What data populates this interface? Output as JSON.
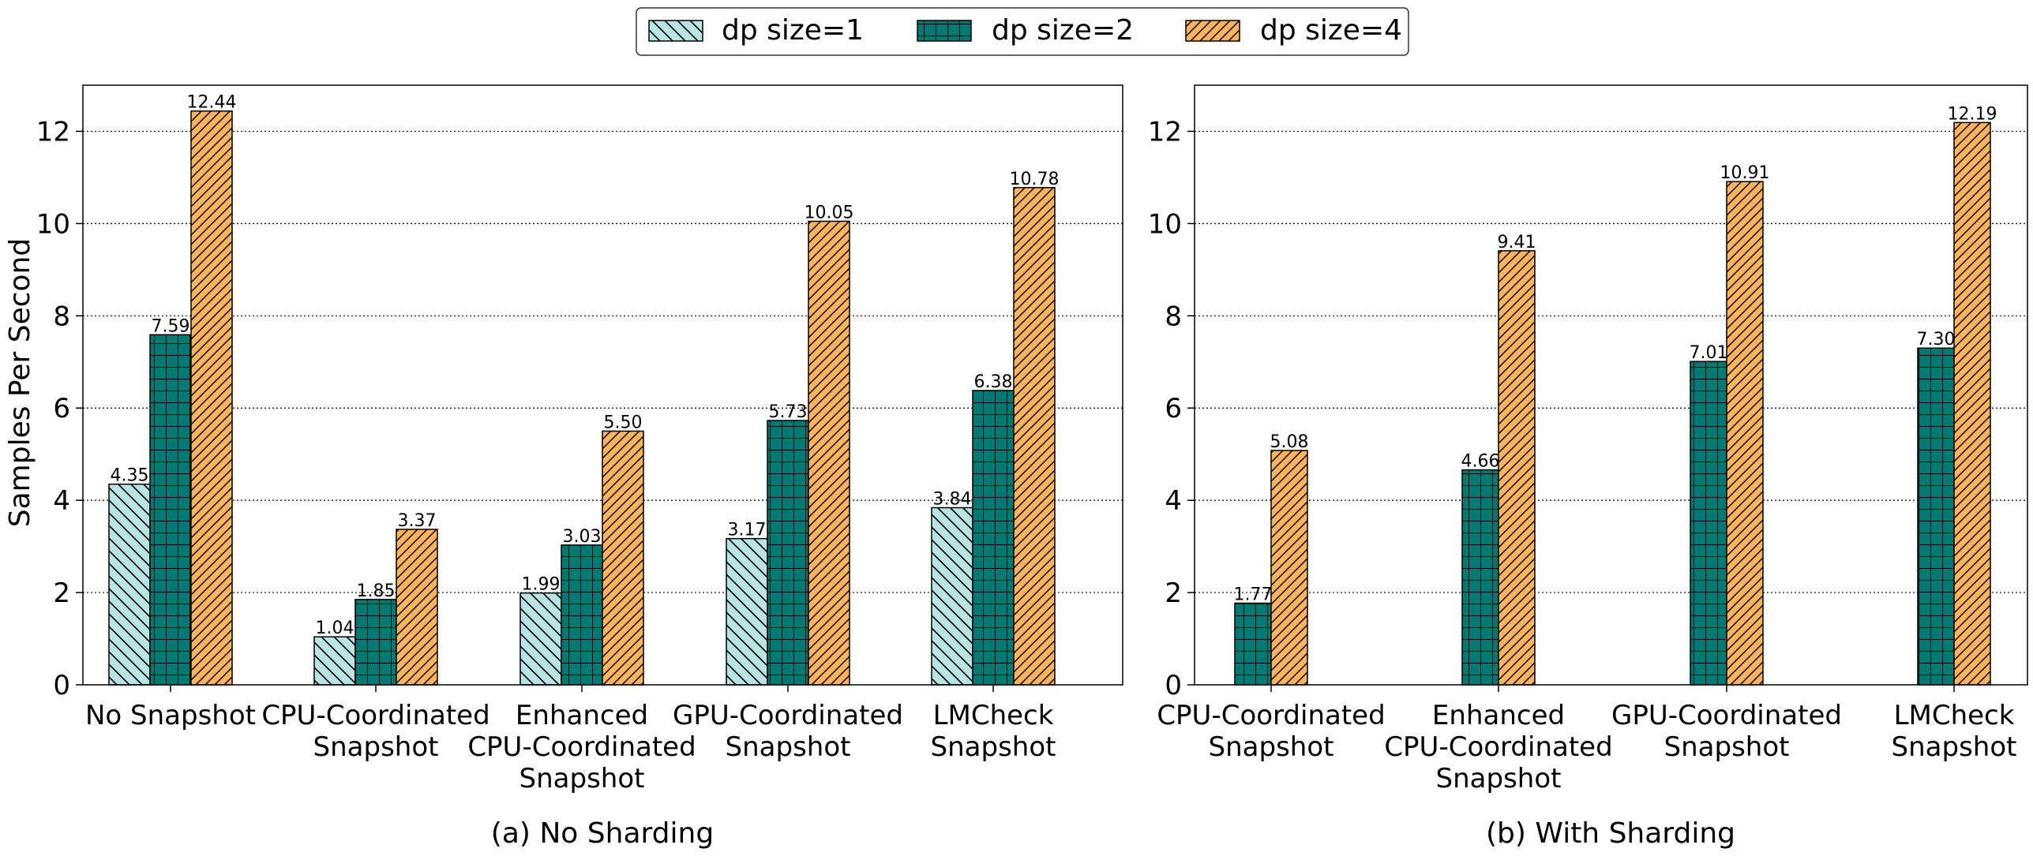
{
  "colors": {
    "dp1_fill": "#b8e3e3",
    "dp2_fill": "#007a73",
    "dp4_fill": "#fcb35e",
    "edge": "#000000",
    "grid": "#000000"
  },
  "legend": {
    "position": "top-center",
    "entries": [
      "dp size=1",
      "dp size=2",
      "dp size=4"
    ]
  },
  "ylabel": "Samples Per Second",
  "chart_data": [
    {
      "type": "bar",
      "title": "(a) No Sharding",
      "ylabel": "Samples Per Second",
      "ylim": [
        0,
        13
      ],
      "yticks": [
        0,
        2,
        4,
        6,
        8,
        10,
        12
      ],
      "grid": "horizontal dotted",
      "categories": [
        [
          "No Snapshot"
        ],
        [
          "CPU-Coordinated",
          "Snapshot"
        ],
        [
          "Enhanced",
          "CPU-Coordinated",
          "Snapshot"
        ],
        [
          "GPU-Coordinated",
          "Snapshot"
        ],
        [
          "LMCheck",
          "Snapshot"
        ]
      ],
      "series": [
        {
          "name": "dp size=1",
          "values": [
            4.35,
            1.04,
            1.99,
            3.17,
            3.84
          ],
          "labels": [
            "4.35",
            "1.04",
            "1.99",
            "3.17",
            "3.84"
          ]
        },
        {
          "name": "dp size=2",
          "values": [
            7.59,
            1.85,
            3.03,
            5.73,
            6.38
          ],
          "labels": [
            "7.59",
            "1.85",
            "3.03",
            "5.73",
            "6.38"
          ]
        },
        {
          "name": "dp size=4",
          "values": [
            12.44,
            3.37,
            5.5,
            10.05,
            10.78
          ],
          "labels": [
            "12.44",
            "3.37",
            "5.50",
            "10.05",
            "10.78"
          ]
        }
      ]
    },
    {
      "type": "bar",
      "title": "(b) With Sharding",
      "ylim": [
        0,
        13
      ],
      "yticks": [
        0,
        2,
        4,
        6,
        8,
        10,
        12
      ],
      "grid": "horizontal dotted",
      "categories": [
        [
          "CPU-Coordinated",
          "Snapshot"
        ],
        [
          "Enhanced",
          "CPU-Coordinated",
          "Snapshot"
        ],
        [
          "GPU-Coordinated",
          "Snapshot"
        ],
        [
          "LMCheck",
          "Snapshot"
        ]
      ],
      "series": [
        {
          "name": "dp size=2",
          "values": [
            1.77,
            4.66,
            7.01,
            7.3
          ],
          "labels": [
            "1.77",
            "4.66",
            "7.01",
            "7.30"
          ]
        },
        {
          "name": "dp size=4",
          "values": [
            5.08,
            9.41,
            10.91,
            12.19
          ],
          "labels": [
            "5.08",
            "9.41",
            "10.91",
            "12.19"
          ]
        }
      ]
    }
  ]
}
